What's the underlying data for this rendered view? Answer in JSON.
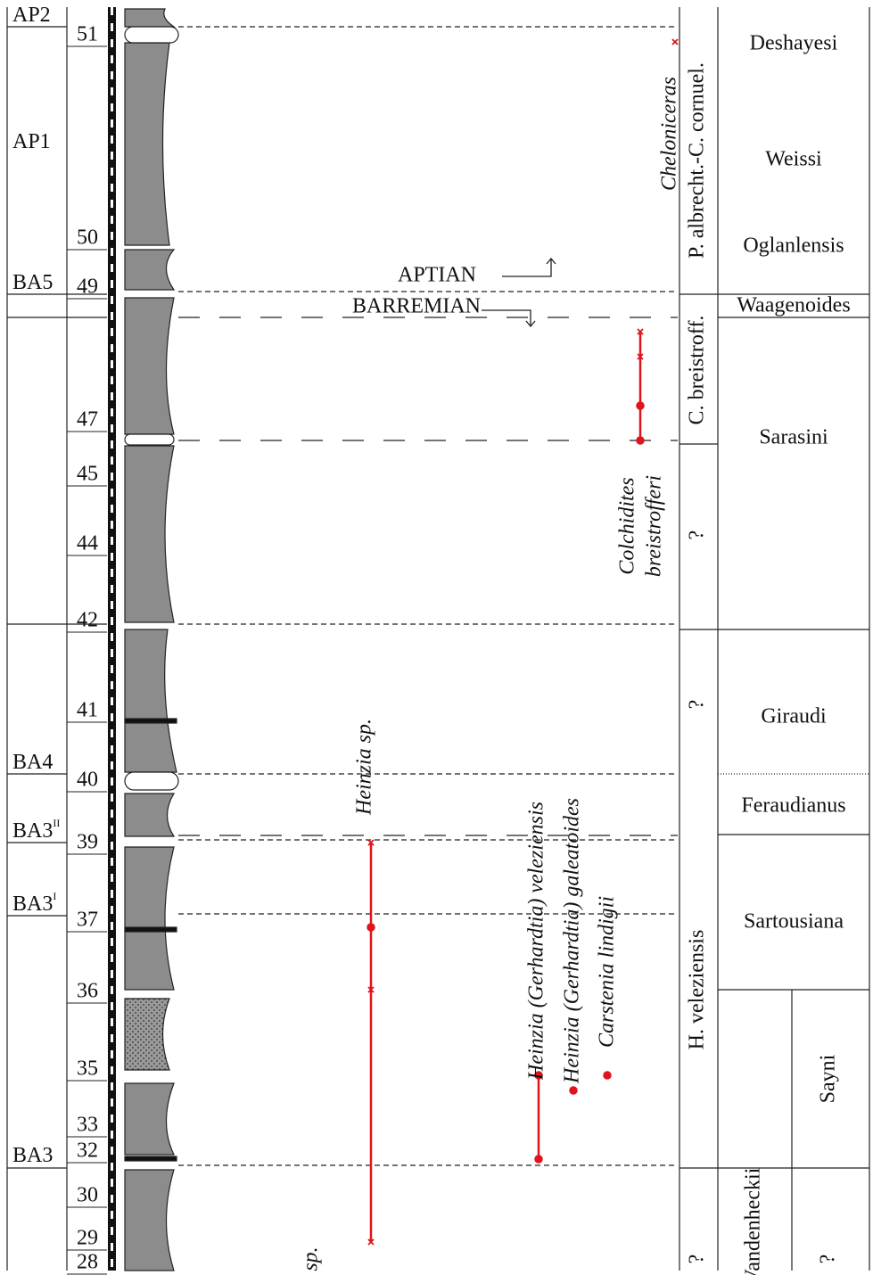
{
  "left_labels": [
    {
      "text": "AP2"
    },
    {
      "text": "AP1"
    },
    {
      "text": "BA5"
    },
    {
      "text": "BA4"
    },
    {
      "text": "BA3",
      "sup": "II"
    },
    {
      "text": "BA3",
      "sup": "I"
    },
    {
      "text": "BA3"
    }
  ],
  "bed_numbers": [
    "51",
    "50",
    "49",
    "47",
    "45",
    "44",
    "42",
    "41",
    "40",
    "39",
    "37",
    "36",
    "35",
    "33",
    "32",
    "30",
    "29",
    "28"
  ],
  "stage_labels": [
    "APTIAN",
    "BARREMIAN"
  ],
  "taxa": [
    [
      "Cheloniceras"
    ],
    [
      "Colchidites",
      "breistrofferi"
    ],
    [
      "Heinzia sp."
    ],
    [
      "Heinzia (Gerhardtia) veleziensis"
    ],
    [
      "Heinzia (Gerhardtia) galeatoides"
    ],
    [
      "Carstenia lindigii"
    ],
    [
      "sp."
    ]
  ],
  "zones": [
    "P. albrecht.-C. cornuel.",
    "C. breistroff.",
    "?",
    "?",
    "H. veleziensis",
    "?"
  ],
  "subzones": [
    "Deshayesi",
    "Weissi",
    "Oglanlensis",
    "Waagenoides",
    "Sarasini",
    "Giraudi",
    "Feraudianus",
    "Sartousiana",
    "Vandenheckii",
    "Sayni",
    "?"
  ]
}
